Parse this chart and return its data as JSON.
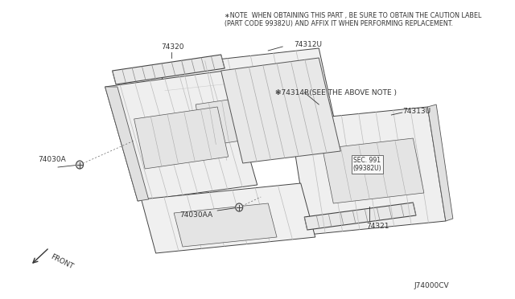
{
  "bg_color": "#ffffff",
  "note_line1": "∗NOTE  WHEN OBTAINING THIS PART , BE SURE TO OBTAIN THE CAUTION LABEL",
  "note_line2": "(PART CODE 99382U) AND AFFIX IT WHEN PERFORMING REPLACEMENT.",
  "diagram_id": "J74000CV",
  "text_color": "#333333",
  "line_color": "#555555",
  "note_fontsize": 5.8,
  "label_fontsize": 6.5,
  "id_fontsize": 6.5
}
